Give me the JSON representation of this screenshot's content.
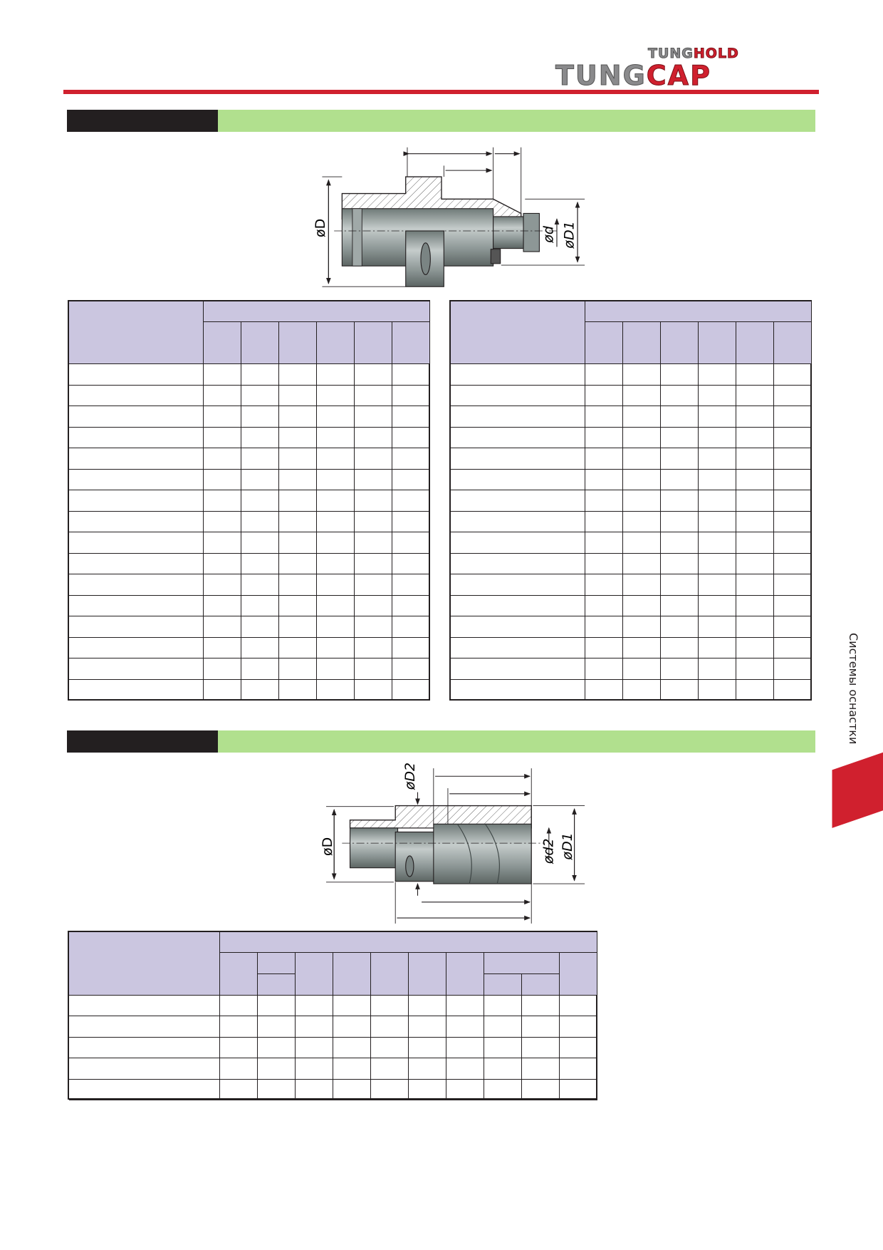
{
  "header": {
    "logo_top": {
      "part1": "TUNG",
      "part2": "HOLD"
    },
    "logo_main": {
      "part1": "TUNG",
      "part2": "CAP"
    }
  },
  "colors": {
    "accent_red": "#d0202e",
    "band_green": "#b1e08e",
    "band_black": "#231f20",
    "table_header": "#cbc6e0"
  },
  "section1": {
    "drawing_labels": {
      "D": "øD",
      "d": "ød",
      "D1": "øD1"
    }
  },
  "section2": {
    "drawing_labels": {
      "D": "øD",
      "D2": "øD2",
      "d2": "ød2",
      "D1": "øD1"
    }
  },
  "side_tab": {
    "label": "Системы оснастки"
  }
}
